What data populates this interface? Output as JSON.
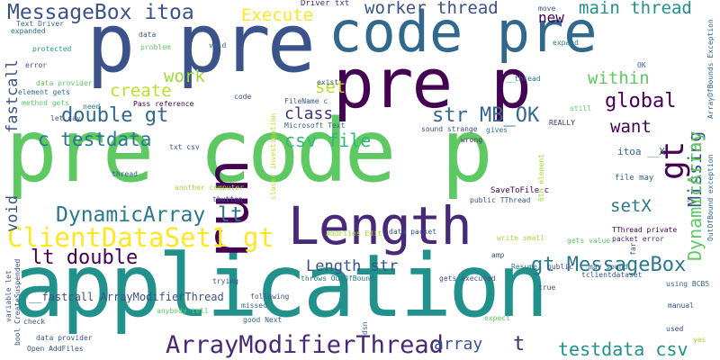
{
  "colors": {
    "background": "#ffffff",
    "palette": [
      "#440154",
      "#46327e",
      "#365c8d",
      "#277f8e",
      "#1fa187",
      "#4ac16d",
      "#a0da39",
      "#fde725"
    ]
  },
  "words": [
    "pre code p",
    "application",
    "code pre",
    "pre p",
    "p pre",
    "run",
    "Length",
    "ClientDataSet1 gt",
    "DynamicArray lt",
    "ArrayModifierThread",
    "MessageBox itoa",
    "worker thread",
    "main thread",
    "Execute",
    "new",
    "double gt",
    "str MB_OK",
    "global",
    "csv file",
    "c testdata",
    "class",
    "create",
    "work",
    "set",
    "within",
    "want",
    "gt",
    "setX",
    "Missing",
    "DynamicArray",
    "lt double",
    "Length str",
    "gt MessageBox",
    "testdata csv",
    "array",
    "t",
    "void",
    "fastcall",
    "__fastcall ArrayModifierThread",
    "Driver txt",
    "Text Driver",
    "expanded",
    "protected",
    "error",
    "element gets",
    "method gets",
    "let say",
    "data provider",
    "need",
    "Pass reference",
    "problem",
    "data",
    "void",
    "code",
    "FileName c",
    "exist",
    "closer investigation",
    "Microsoft Text",
    "sound strange",
    "wrong",
    "gives",
    "REALLY",
    "still",
    "itoa __X",
    "file may",
    "TThread private",
    "packet error",
    "gets value",
    "far",
    "OutOfBound exception",
    "ArrayOfBounds Exception",
    "6th element",
    "public TThread",
    "SaveToFile c",
    "write small",
    "amp",
    "public",
    "may sound",
    "data packet",
    "AddFiles Edit",
    "throws OutOfBound",
    "gets executed",
    "Resume",
    "tclientdataset",
    "true",
    "using BCB5",
    "manual",
    "yes",
    "used",
    "expect",
    "dsn",
    "missed",
    "good Next",
    "following",
    "trying",
    "anybody tell",
    "check",
    "variable let",
    "bool CreateSuspended",
    "data provider",
    "Open AddFiles",
    "tbutton",
    "another computer",
    "thread",
    "txt csv",
    "move",
    "expand",
    "OK",
    "__thread"
  ]
}
